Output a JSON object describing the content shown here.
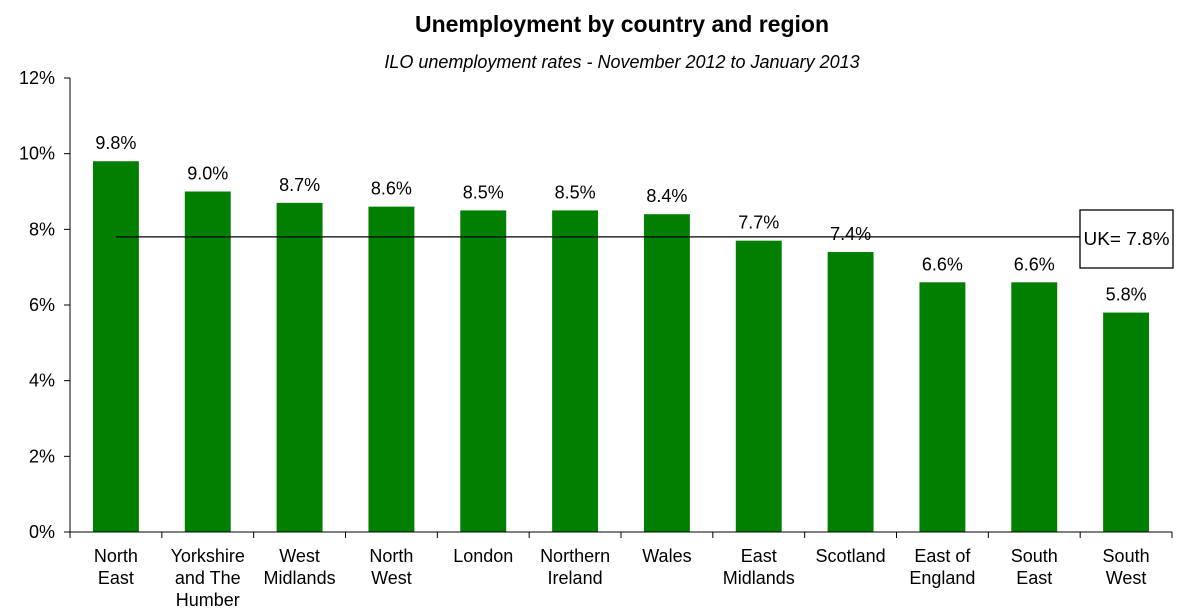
{
  "chart_data": {
    "type": "bar",
    "title": "Unemployment by country and region",
    "subtitle": "ILO unemployment rates - November 2012 to January 2013",
    "xlabel": "",
    "ylabel": "",
    "ylim": [
      0,
      12
    ],
    "y_ticks": [
      "0%",
      "2%",
      "4%",
      "6%",
      "8%",
      "10%",
      "12%"
    ],
    "y_tick_values": [
      0,
      2,
      4,
      6,
      8,
      10,
      12
    ],
    "categories": [
      [
        "North",
        "East"
      ],
      [
        "Yorkshire",
        "and The",
        "Humber"
      ],
      [
        "West",
        "Midlands"
      ],
      [
        "North",
        "West"
      ],
      [
        "London"
      ],
      [
        "Northern",
        "Ireland"
      ],
      [
        "Wales"
      ],
      [
        "East",
        "Midlands"
      ],
      [
        "Scotland"
      ],
      [
        "East of",
        "England"
      ],
      [
        "South",
        "East"
      ],
      [
        "South",
        "West"
      ]
    ],
    "values": [
      9.8,
      9.0,
      8.7,
      8.6,
      8.5,
      8.5,
      8.4,
      7.7,
      7.4,
      6.6,
      6.6,
      5.8
    ],
    "value_labels": [
      "9.8%",
      "9.0%",
      "8.7%",
      "8.6%",
      "8.5%",
      "8.5%",
      "8.4%",
      "7.7%",
      "7.4%",
      "6.6%",
      "6.6%",
      "5.8%"
    ],
    "reference_line": {
      "value": 7.8,
      "label": "UK= 7.8%"
    },
    "grid": false,
    "legend": "none",
    "bar_color": "#007f00",
    "axis_color": "#000000"
  }
}
